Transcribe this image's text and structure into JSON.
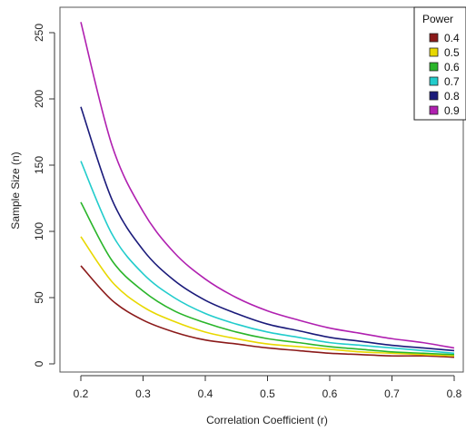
{
  "chart_data": {
    "type": "line",
    "xlabel": "Correlation Coefficient (r)",
    "ylabel": "Sample Size (n)",
    "xlim": [
      0.2,
      0.8
    ],
    "ylim": [
      0,
      260
    ],
    "xticks": [
      "0.2",
      "0.3",
      "0.4",
      "0.5",
      "0.6",
      "0.7",
      "0.8"
    ],
    "yticks": [
      "0",
      "50",
      "100",
      "150",
      "200",
      "250"
    ],
    "grid": false,
    "legend": {
      "title": "Power",
      "placement": "top-right"
    },
    "x": [
      0.2,
      0.25,
      0.3,
      0.35,
      0.4,
      0.45,
      0.5,
      0.55,
      0.6,
      0.65,
      0.7,
      0.75,
      0.8
    ],
    "series": [
      {
        "name": "0.4",
        "color": "#8b1a1a",
        "values": [
          74,
          48,
          33,
          24,
          18,
          15,
          12,
          10,
          8,
          7,
          6,
          6,
          5
        ]
      },
      {
        "name": "0.5",
        "color": "#e8d800",
        "values": [
          96,
          62,
          43,
          32,
          24,
          19,
          15,
          13,
          11,
          9,
          8,
          7,
          6
        ]
      },
      {
        "name": "0.6",
        "color": "#2ab52a",
        "values": [
          122,
          78,
          55,
          40,
          31,
          24,
          19,
          16,
          13,
          11,
          9,
          8,
          7
        ]
      },
      {
        "name": "0.7",
        "color": "#22cccc",
        "values": [
          153,
          98,
          68,
          50,
          38,
          30,
          24,
          20,
          16,
          14,
          12,
          10,
          8
        ]
      },
      {
        "name": "0.8",
        "color": "#1a1a7a",
        "values": [
          194,
          124,
          86,
          63,
          48,
          38,
          30,
          25,
          20,
          17,
          14,
          12,
          10
        ]
      },
      {
        "name": "0.9",
        "color": "#b020b0",
        "values": [
          258,
          165,
          115,
          84,
          64,
          50,
          40,
          33,
          27,
          23,
          19,
          16,
          12
        ]
      }
    ]
  }
}
